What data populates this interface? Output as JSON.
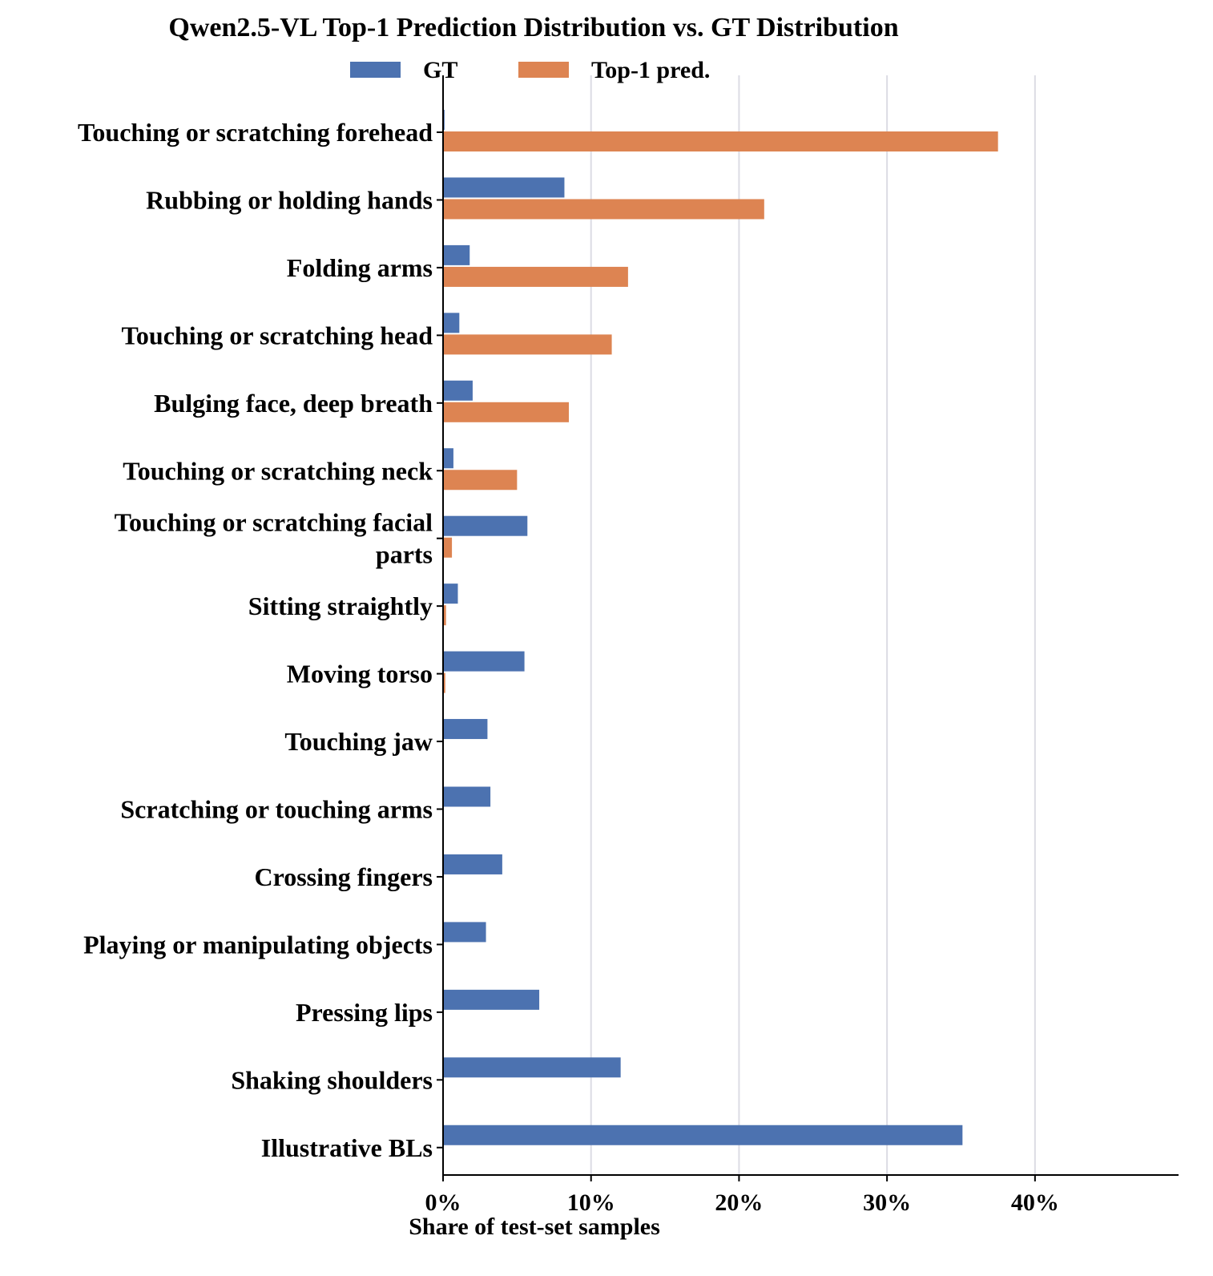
{
  "chart_data": {
    "type": "bar",
    "orientation": "horizontal",
    "title": "Qwen2.5-VL Top-1 Prediction Distribution vs. GT Distribution",
    "xlabel": "Share of test-set samples",
    "ylabel": "",
    "xlim": [
      0,
      49.7
    ],
    "xticks": [
      0,
      10,
      20,
      30,
      40
    ],
    "xtick_labels": [
      "0%",
      "10%",
      "20%",
      "30%",
      "40%"
    ],
    "grid": "vertical",
    "legend": "top-center",
    "categories": [
      [
        "Touching or scratching forehead"
      ],
      [
        "Rubbing or holding hands"
      ],
      [
        "Folding arms"
      ],
      [
        "Touching or scratching head"
      ],
      [
        "Bulging face, deep breath"
      ],
      [
        "Touching or scratching neck"
      ],
      [
        "Touching or scratching facial",
        "parts"
      ],
      [
        "Sitting straightly"
      ],
      [
        "Moving torso"
      ],
      [
        "Touching jaw"
      ],
      [
        "Scratching or touching arms"
      ],
      [
        "Crossing fingers"
      ],
      [
        "Playing or manipulating objects"
      ],
      [
        "Pressing lips"
      ],
      [
        "Shaking shoulders"
      ],
      [
        "Illustrative BLs"
      ]
    ],
    "series": [
      {
        "name": "GT",
        "color": "#4c72b0",
        "values": [
          0.1,
          8.2,
          1.8,
          1.1,
          2.0,
          0.7,
          5.7,
          1.0,
          5.5,
          3.0,
          3.2,
          4.0,
          2.9,
          6.5,
          12.0,
          35.1
        ]
      },
      {
        "name": "Top-1 pred.",
        "color": "#dd8452",
        "values": [
          37.5,
          21.7,
          12.5,
          11.4,
          8.5,
          5.0,
          0.6,
          0.2,
          0.15,
          0,
          0,
          0,
          0,
          0,
          0,
          0
        ]
      }
    ]
  }
}
